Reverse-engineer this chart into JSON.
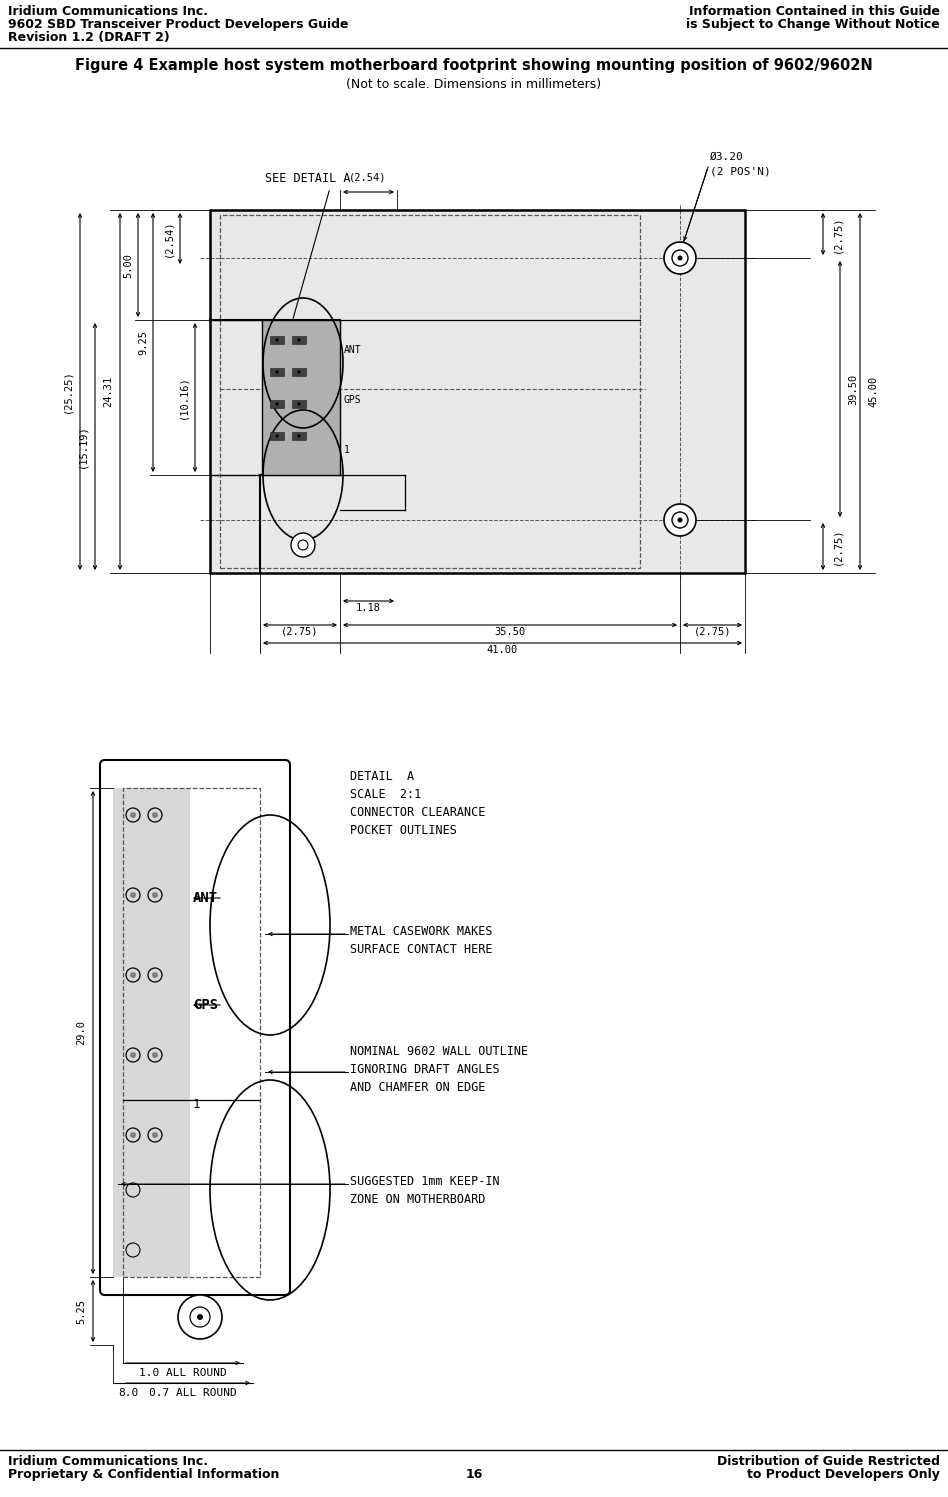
{
  "header_left_line1": "Iridium Communications Inc.",
  "header_left_line2": "9602 SBD Transceiver Product Developers Guide",
  "header_left_line3": "Revision 1.2 (DRAFT 2)",
  "header_right_line1": "Information Contained in this Guide",
  "header_right_line2": "is Subject to Change Without Notice",
  "footer_left_line1": "Iridium Communications Inc.",
  "footer_left_line2": "Proprietary & Confidential Information",
  "footer_center": "16",
  "footer_right_line1": "Distribution of Guide Restricted",
  "footer_right_line2": "to Product Developers Only",
  "figure_title": "Figure 4 Example host system motherboard footprint showing mounting position of 9602/9602N",
  "figure_subtitle": "(Not to scale. Dimensions in millimeters)",
  "bg_color": "#ffffff",
  "text_color": "#000000",
  "line_color": "#000000"
}
